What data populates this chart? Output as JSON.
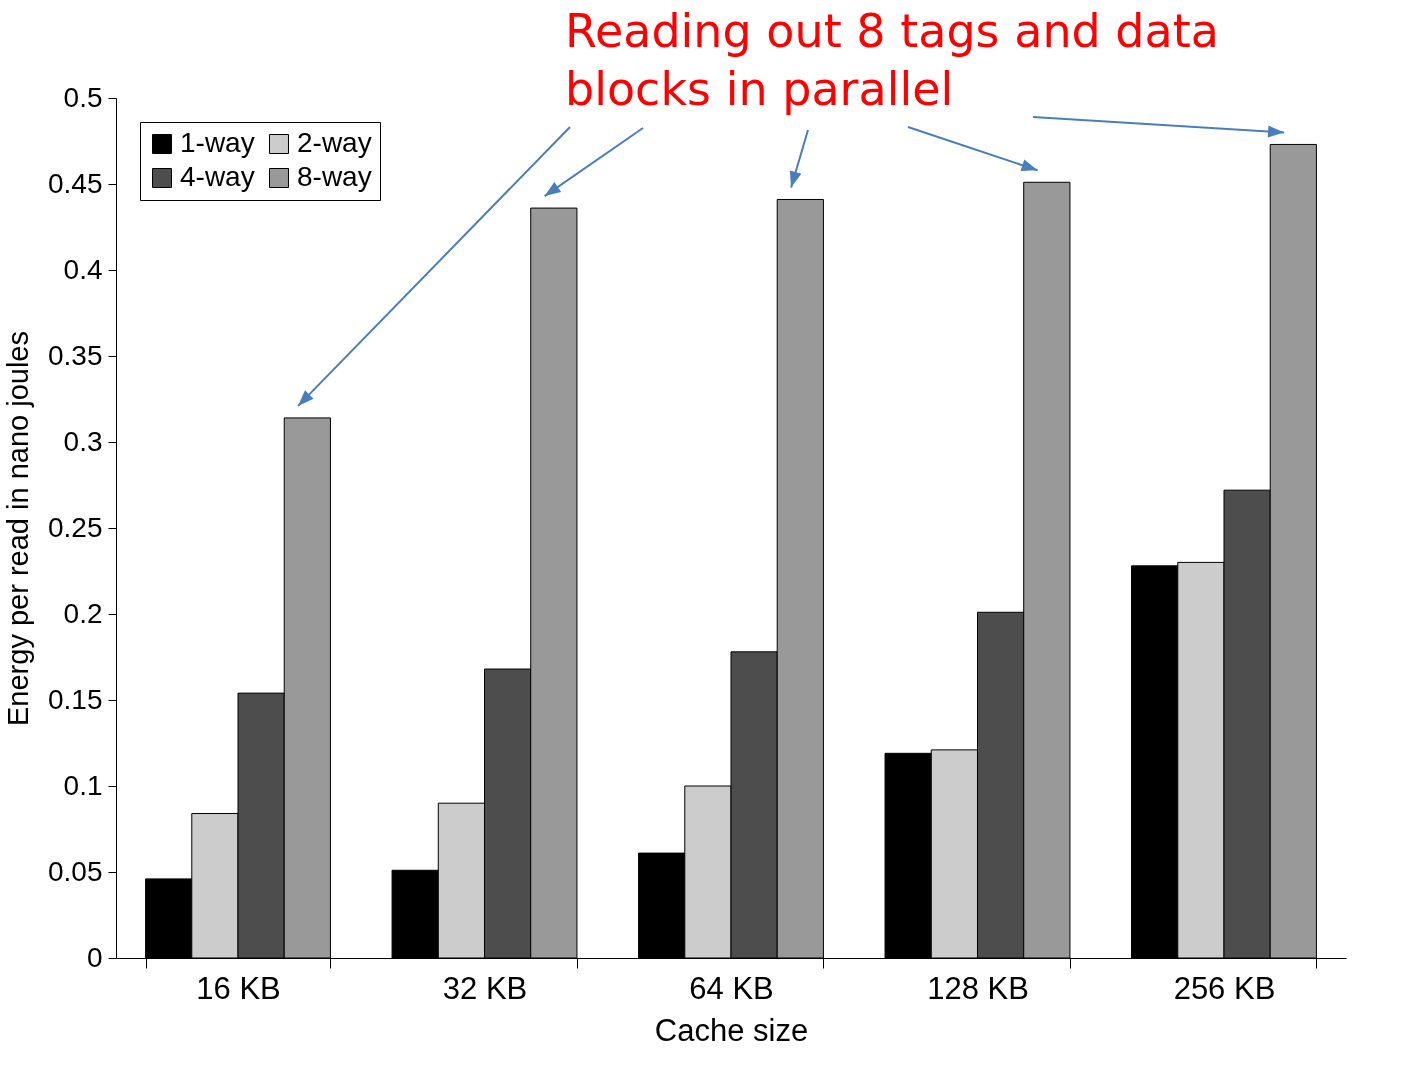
{
  "chart_data": {
    "type": "bar",
    "xlabel": "Cache size",
    "ylabel": "Energy per read in nano joules",
    "categories": [
      "16 KB",
      "32 KB",
      "64 KB",
      "128 KB",
      "256 KB"
    ],
    "series": [
      {
        "name": "1-way",
        "color": "#000000",
        "values": [
          0.046,
          0.051,
          0.061,
          0.119,
          0.228
        ]
      },
      {
        "name": "2-way",
        "color": "#cccccc",
        "values": [
          0.084,
          0.09,
          0.1,
          0.121,
          0.23
        ]
      },
      {
        "name": "4-way",
        "color": "#4d4d4d",
        "values": [
          0.154,
          0.168,
          0.178,
          0.201,
          0.272
        ]
      },
      {
        "name": "8-way",
        "color": "#999999",
        "values": [
          0.314,
          0.436,
          0.441,
          0.451,
          0.473
        ]
      }
    ],
    "ylim": [
      0,
      0.5
    ],
    "yticks": [
      0,
      0.05,
      0.1,
      0.15,
      0.2,
      0.25,
      0.3,
      0.35,
      0.4,
      0.45,
      0.5
    ],
    "grid": false,
    "legend": "top left",
    "annotations": [
      "Reading out 8 tags and data blocks in parallel"
    ]
  }
}
